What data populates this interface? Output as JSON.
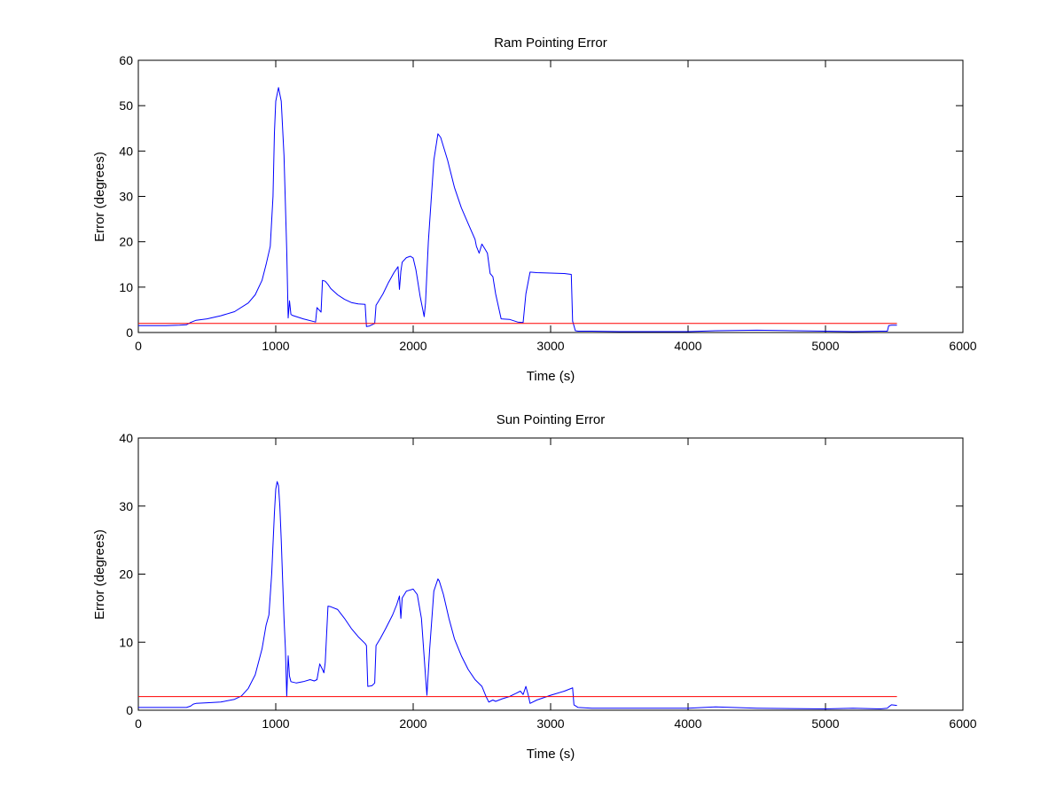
{
  "chart_data": [
    {
      "type": "line",
      "title": "Ram Pointing Error",
      "xlabel": "Time (s)",
      "ylabel": "Error (degrees)",
      "xlim": [
        0,
        6000
      ],
      "ylim": [
        0,
        60
      ],
      "xticks": [
        "0",
        "1000",
        "2000",
        "3000",
        "4000",
        "5000",
        "6000"
      ],
      "yticks": [
        "0",
        "10",
        "20",
        "30",
        "40",
        "50",
        "60"
      ],
      "grid": false,
      "series": [
        {
          "color": "#0000ff",
          "x": [
            0,
            100,
            200,
            300,
            350,
            380,
            420,
            500,
            600,
            700,
            800,
            850,
            900,
            930,
            960,
            980,
            990,
            1000,
            1020,
            1040,
            1060,
            1080,
            1090,
            1100,
            1110,
            1120,
            1200,
            1290,
            1300,
            1330,
            1340,
            1360,
            1380,
            1400,
            1450,
            1500,
            1550,
            1600,
            1650,
            1660,
            1680,
            1720,
            1730,
            1740,
            1780,
            1820,
            1860,
            1890,
            1900,
            1910,
            1920,
            1950,
            1980,
            2000,
            2020,
            2050,
            2080,
            2090,
            2110,
            2150,
            2180,
            2200,
            2250,
            2300,
            2350,
            2400,
            2450,
            2460,
            2480,
            2500,
            2520,
            2540,
            2560,
            2580,
            2600,
            2640,
            2700,
            2760,
            2800,
            2820,
            2850,
            2900,
            3000,
            3100,
            3150,
            3160,
            3180,
            3200,
            3300,
            3500,
            4000,
            4200,
            4500,
            5000,
            5200,
            5400,
            5450,
            5460,
            5480,
            5520
          ],
          "y": [
            1.5,
            1.5,
            1.5,
            1.6,
            1.7,
            2.2,
            2.7,
            3.0,
            3.7,
            4.6,
            6.5,
            8.3,
            11.5,
            15.0,
            19.0,
            30.0,
            44.0,
            51.0,
            54.0,
            51.0,
            39.0,
            18.0,
            3.2,
            7.0,
            4.0,
            3.8,
            3.0,
            2.3,
            5.5,
            4.5,
            11.5,
            11.3,
            10.6,
            9.7,
            8.3,
            7.3,
            6.6,
            6.3,
            6.2,
            1.3,
            1.4,
            2.0,
            6.0,
            6.5,
            8.5,
            11.0,
            13.2,
            14.5,
            9.5,
            13.5,
            15.5,
            16.5,
            16.8,
            16.4,
            13.8,
            8.0,
            3.5,
            6.5,
            20.0,
            38.0,
            43.8,
            43.0,
            38.0,
            32.0,
            27.5,
            24.0,
            20.5,
            19.0,
            17.5,
            19.5,
            18.5,
            17.5,
            13.0,
            12.3,
            8.5,
            3.0,
            2.9,
            2.3,
            2.2,
            8.5,
            13.3,
            13.2,
            13.1,
            13.0,
            12.8,
            2.5,
            0.4,
            0.3,
            0.3,
            0.2,
            0.2,
            0.4,
            0.5,
            0.3,
            0.2,
            0.3,
            0.3,
            1.5,
            1.6,
            1.6
          ]
        },
        {
          "color": "#ff0000",
          "x": [
            0,
            5520
          ],
          "y": [
            2,
            2
          ]
        }
      ]
    },
    {
      "type": "line",
      "title": "Sun Pointing Error",
      "xlabel": "Time (s)",
      "ylabel": "Error (degrees)",
      "xlim": [
        0,
        6000
      ],
      "ylim": [
        0,
        40
      ],
      "xticks": [
        "0",
        "1000",
        "2000",
        "3000",
        "4000",
        "5000",
        "6000"
      ],
      "yticks": [
        "0",
        "10",
        "20",
        "30",
        "40"
      ],
      "grid": false,
      "series": [
        {
          "color": "#0000ff",
          "x": [
            0,
            100,
            200,
            300,
            350,
            380,
            400,
            420,
            500,
            600,
            700,
            750,
            800,
            850,
            900,
            930,
            950,
            970,
            990,
            1000,
            1010,
            1020,
            1030,
            1040,
            1050,
            1060,
            1070,
            1080,
            1090,
            1100,
            1110,
            1150,
            1200,
            1250,
            1280,
            1300,
            1320,
            1340,
            1350,
            1360,
            1380,
            1400,
            1450,
            1500,
            1550,
            1600,
            1650,
            1660,
            1670,
            1700,
            1720,
            1730,
            1760,
            1800,
            1850,
            1880,
            1900,
            1910,
            1920,
            1950,
            2000,
            2030,
            2060,
            2090,
            2100,
            2120,
            2150,
            2180,
            2190,
            2220,
            2260,
            2300,
            2350,
            2400,
            2450,
            2500,
            2530,
            2550,
            2560,
            2580,
            2600,
            2650,
            2700,
            2750,
            2780,
            2800,
            2820,
            2840,
            2850,
            2900,
            3000,
            3100,
            3150,
            3160,
            3170,
            3200,
            3300,
            3500,
            4000,
            4200,
            4500,
            5000,
            5200,
            5400,
            5450,
            5460,
            5480,
            5520
          ],
          "y": [
            0.4,
            0.4,
            0.4,
            0.4,
            0.4,
            0.6,
            0.9,
            1.0,
            1.1,
            1.2,
            1.6,
            2.1,
            3.2,
            5.2,
            9.0,
            12.5,
            14.0,
            20.0,
            29.0,
            32.5,
            33.6,
            33.0,
            30.0,
            25.0,
            19.0,
            13.5,
            9.0,
            2.0,
            8.0,
            5.0,
            4.2,
            4.0,
            4.2,
            4.5,
            4.3,
            4.5,
            6.8,
            6.0,
            5.5,
            7.0,
            15.3,
            15.2,
            14.8,
            13.5,
            12.0,
            10.8,
            9.8,
            9.5,
            3.5,
            3.6,
            4.0,
            9.5,
            10.5,
            12.0,
            14.0,
            15.5,
            16.8,
            13.5,
            16.5,
            17.5,
            17.8,
            17.0,
            13.5,
            5.0,
            2.2,
            9.0,
            17.5,
            19.3,
            19.0,
            17.0,
            13.5,
            10.5,
            8.0,
            6.0,
            4.5,
            3.5,
            2.0,
            1.2,
            1.3,
            1.5,
            1.3,
            1.7,
            2.0,
            2.5,
            2.8,
            2.3,
            3.5,
            2.0,
            1.0,
            1.5,
            2.2,
            2.8,
            3.2,
            3.3,
            0.8,
            0.4,
            0.3,
            0.3,
            0.3,
            0.5,
            0.3,
            0.2,
            0.3,
            0.2,
            0.3,
            0.5,
            0.8,
            0.7
          ]
        },
        {
          "color": "#ff0000",
          "x": [
            0,
            5520
          ],
          "y": [
            2,
            2
          ]
        }
      ]
    }
  ]
}
